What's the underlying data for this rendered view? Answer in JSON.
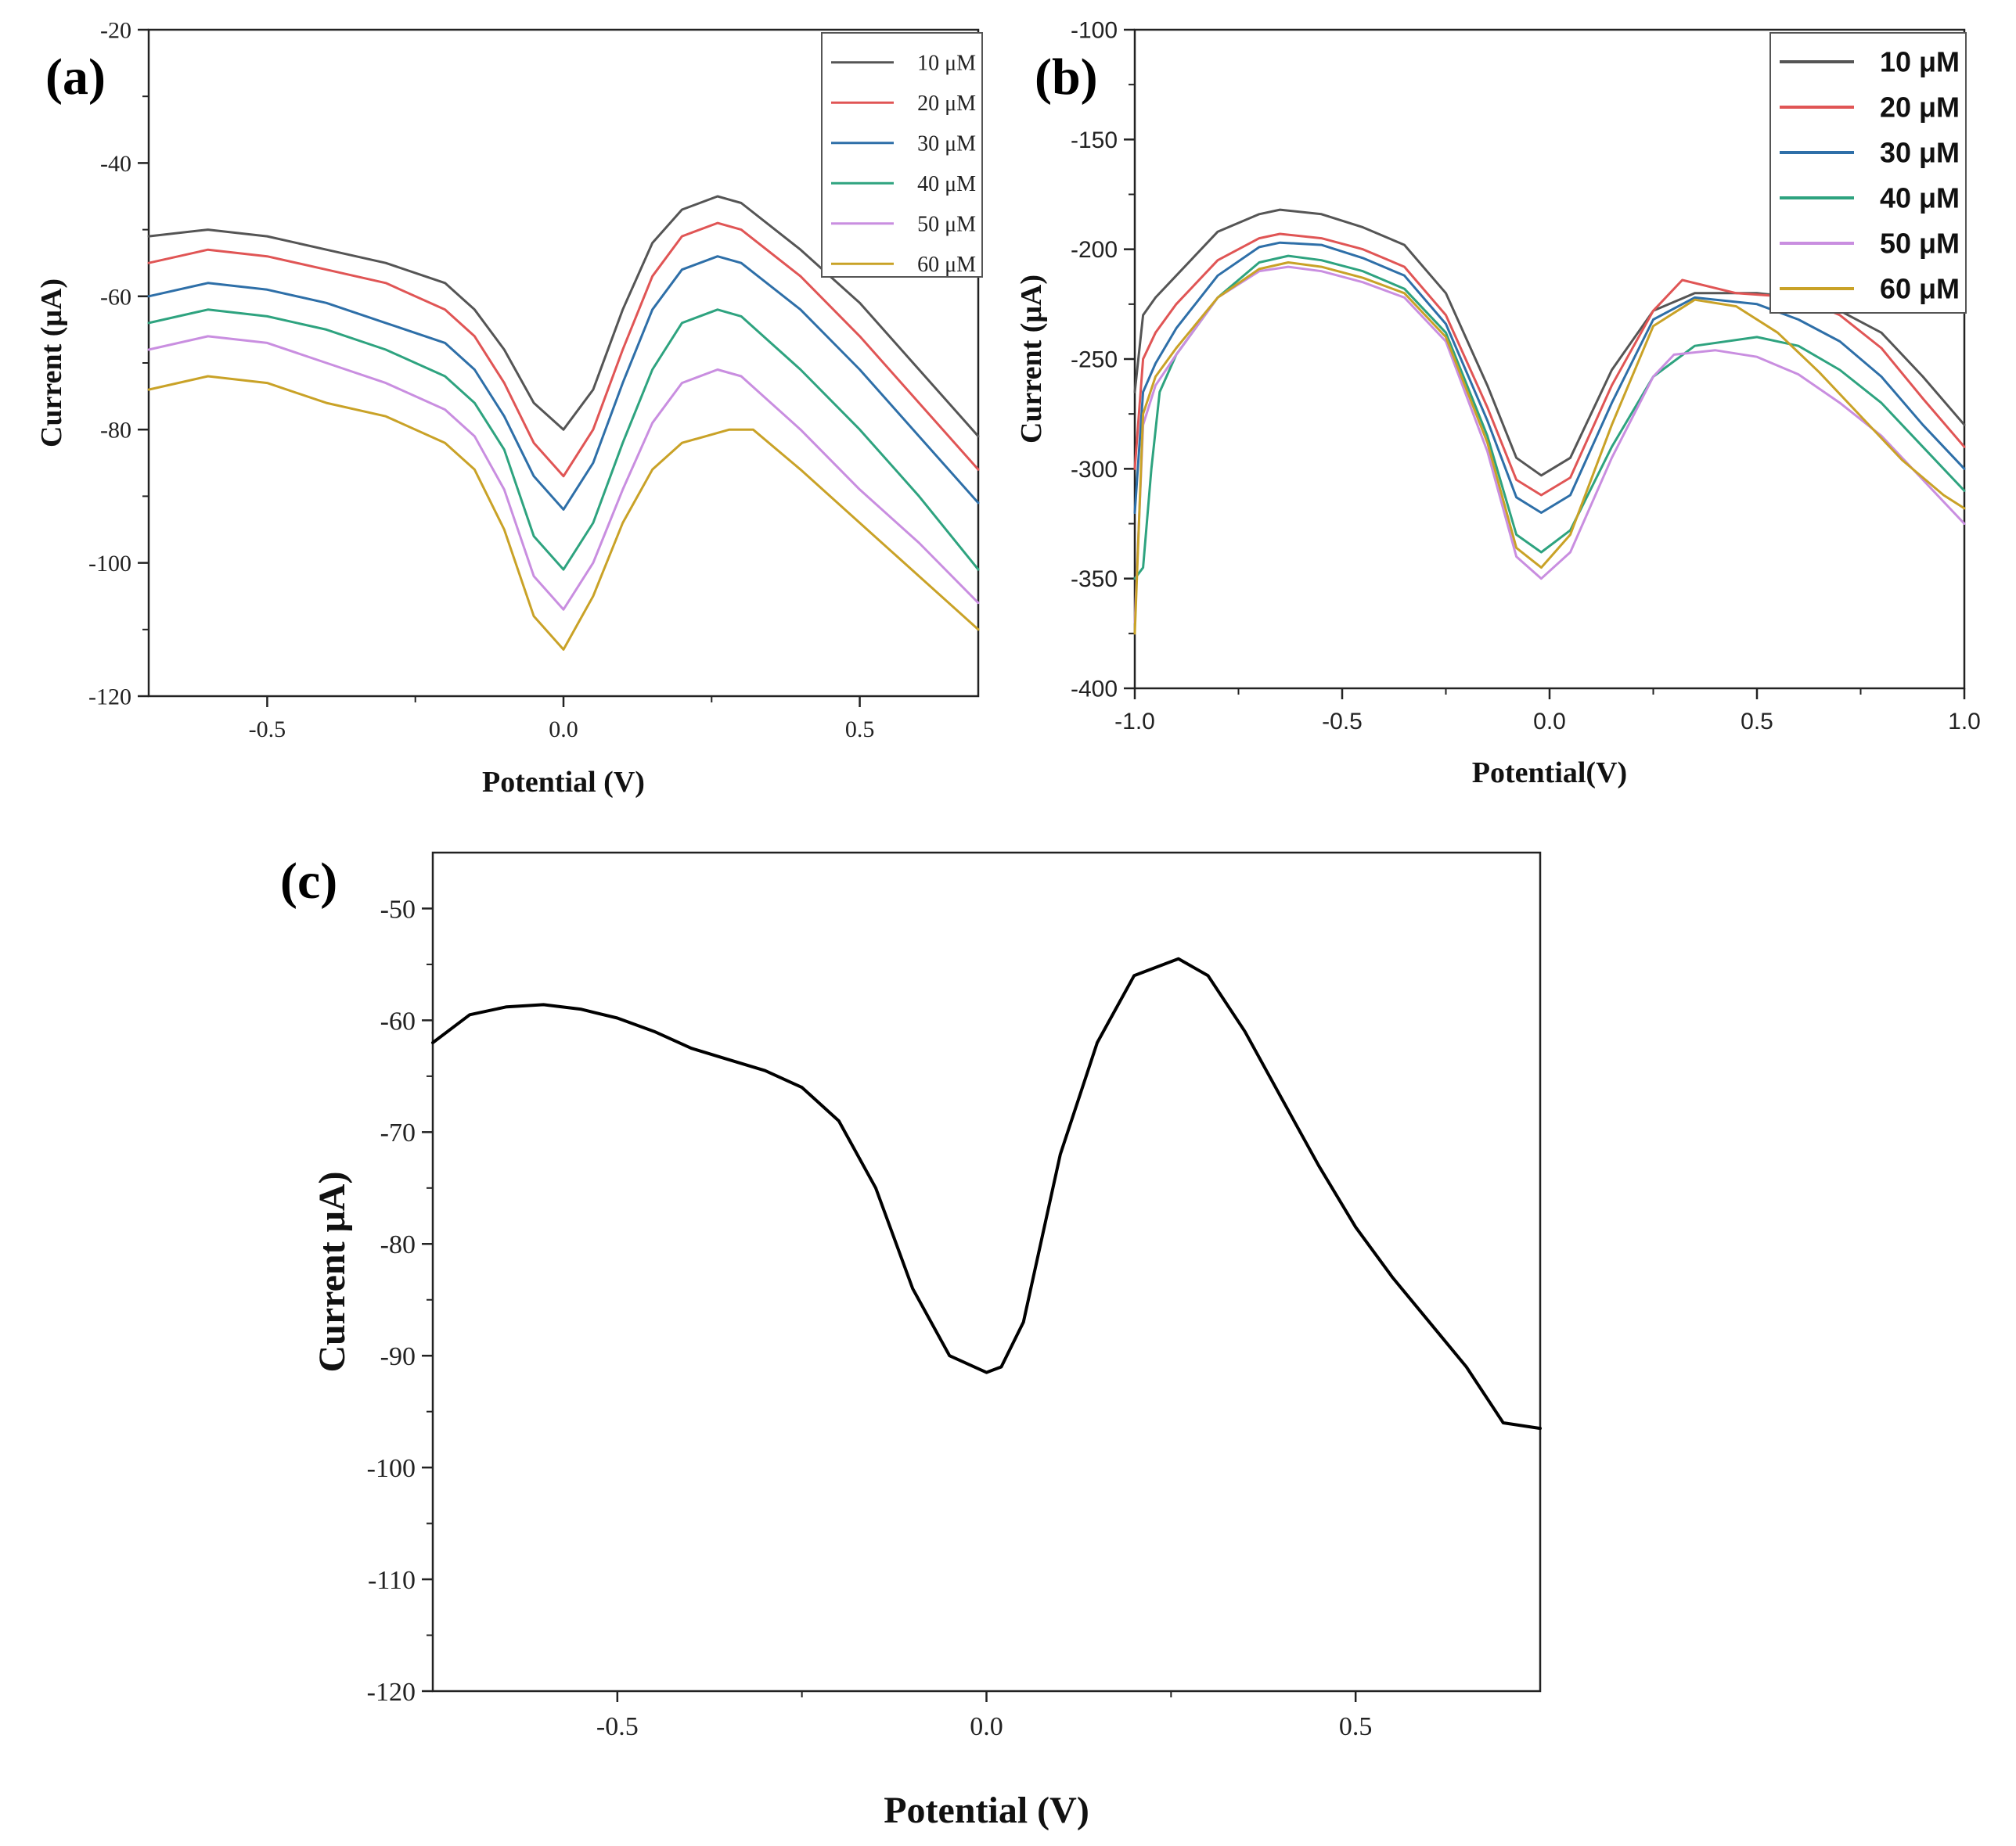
{
  "chart_data": [
    {
      "panel_label": "(a)",
      "type": "line",
      "xlabel": "Potential (V)",
      "ylabel": "Current (μA)",
      "xlim": [
        -0.7,
        0.7
      ],
      "ylim": [
        -120,
        -20
      ],
      "xticks": [
        -0.5,
        0.0,
        0.5
      ],
      "xtick_labels": [
        "-0.5",
        "0.0",
        "0.5"
      ],
      "yticks": [
        -20,
        -40,
        -60,
        -80,
        -100,
        -120
      ],
      "ytick_labels": [
        "-20",
        "-40",
        "-60",
        "-80",
        "-100",
        "-120"
      ],
      "legend_position": "top-right",
      "series": [
        {
          "name": "10 μM",
          "color": "#555555",
          "x": [
            -0.7,
            -0.6,
            -0.5,
            -0.4,
            -0.3,
            -0.2,
            -0.15,
            -0.1,
            -0.05,
            0.0,
            0.05,
            0.1,
            0.15,
            0.2,
            0.26,
            0.3,
            0.4,
            0.5,
            0.6,
            0.7
          ],
          "y": [
            -51,
            -50,
            -51,
            -53,
            -55,
            -58,
            -62,
            -68,
            -76,
            -80,
            -74,
            -62,
            -52,
            -47,
            -45,
            -46,
            -53,
            -61,
            -71,
            -81
          ]
        },
        {
          "name": "20 μM",
          "color": "#e05555",
          "x": [
            -0.7,
            -0.6,
            -0.5,
            -0.4,
            -0.3,
            -0.2,
            -0.15,
            -0.1,
            -0.05,
            0.0,
            0.05,
            0.1,
            0.15,
            0.2,
            0.26,
            0.3,
            0.4,
            0.5,
            0.6,
            0.7
          ],
          "y": [
            -55,
            -53,
            -54,
            -56,
            -58,
            -62,
            -66,
            -73,
            -82,
            -87,
            -80,
            -68,
            -57,
            -51,
            -49,
            -50,
            -57,
            -66,
            -76,
            -86
          ]
        },
        {
          "name": "30 μM",
          "color": "#2e6fa8",
          "x": [
            -0.7,
            -0.6,
            -0.5,
            -0.4,
            -0.3,
            -0.2,
            -0.15,
            -0.1,
            -0.05,
            0.0,
            0.05,
            0.1,
            0.15,
            0.2,
            0.26,
            0.3,
            0.4,
            0.5,
            0.6,
            0.7
          ],
          "y": [
            -60,
            -58,
            -59,
            -61,
            -64,
            -67,
            -71,
            -78,
            -87,
            -92,
            -85,
            -73,
            -62,
            -56,
            -54,
            -55,
            -62,
            -71,
            -81,
            -91
          ]
        },
        {
          "name": "40 μM",
          "color": "#2ea37f",
          "x": [
            -0.7,
            -0.6,
            -0.5,
            -0.4,
            -0.3,
            -0.2,
            -0.15,
            -0.1,
            -0.05,
            0.0,
            0.05,
            0.1,
            0.15,
            0.2,
            0.26,
            0.3,
            0.4,
            0.5,
            0.6,
            0.7
          ],
          "y": [
            -64,
            -62,
            -63,
            -65,
            -68,
            -72,
            -76,
            -83,
            -96,
            -101,
            -94,
            -82,
            -71,
            -64,
            -62,
            -63,
            -71,
            -80,
            -90,
            -101
          ]
        },
        {
          "name": "50 μM",
          "color": "#c98ee0",
          "x": [
            -0.7,
            -0.6,
            -0.5,
            -0.4,
            -0.3,
            -0.2,
            -0.15,
            -0.1,
            -0.05,
            0.0,
            0.05,
            0.1,
            0.15,
            0.2,
            0.26,
            0.3,
            0.4,
            0.5,
            0.6,
            0.7
          ],
          "y": [
            -68,
            -66,
            -67,
            -70,
            -73,
            -77,
            -81,
            -89,
            -102,
            -107,
            -100,
            -89,
            -79,
            -73,
            -71,
            -72,
            -80,
            -89,
            -97,
            -106
          ]
        },
        {
          "name": "60 μM",
          "color": "#c9a227",
          "x": [
            -0.7,
            -0.6,
            -0.5,
            -0.4,
            -0.3,
            -0.2,
            -0.15,
            -0.1,
            -0.05,
            0.0,
            0.05,
            0.1,
            0.15,
            0.2,
            0.28,
            0.32,
            0.4,
            0.5,
            0.6,
            0.7
          ],
          "y": [
            -74,
            -72,
            -73,
            -76,
            -78,
            -82,
            -86,
            -95,
            -108,
            -113,
            -105,
            -94,
            -86,
            -82,
            -80,
            -80,
            -86,
            -94,
            -102,
            -110
          ]
        }
      ]
    },
    {
      "panel_label": "(b)",
      "type": "line",
      "xlabel": "Potential(V)",
      "ylabel": "Current (μA)",
      "xlim": [
        -1.0,
        1.0
      ],
      "ylim": [
        -400,
        -100
      ],
      "xticks": [
        -1.0,
        -0.5,
        0.0,
        0.5,
        1.0
      ],
      "xtick_labels": [
        "-1.0",
        "-0.5",
        "0.0",
        "0.5",
        "1.0"
      ],
      "yticks": [
        -100,
        -150,
        -200,
        -250,
        -300,
        -350,
        -400
      ],
      "ytick_labels": [
        "-100",
        "-150",
        "-200",
        "-250",
        "-300",
        "-350",
        "-400"
      ],
      "legend_position": "top-right",
      "series": [
        {
          "name": "10 μM",
          "color": "#555555",
          "x": [
            -1.0,
            -0.98,
            -0.95,
            -0.9,
            -0.8,
            -0.7,
            -0.65,
            -0.55,
            -0.45,
            -0.35,
            -0.25,
            -0.15,
            -0.08,
            -0.02,
            0.05,
            0.15,
            0.25,
            0.35,
            0.5,
            0.6,
            0.7,
            0.8,
            0.9,
            1.0
          ],
          "y": [
            -265,
            -230,
            -222,
            -212,
            -192,
            -184,
            -182,
            -184,
            -190,
            -198,
            -220,
            -262,
            -295,
            -303,
            -295,
            -255,
            -228,
            -220,
            -220,
            -222,
            -228,
            -238,
            -258,
            -280
          ]
        },
        {
          "name": "20 μM",
          "color": "#e05555",
          "x": [
            -1.0,
            -0.98,
            -0.95,
            -0.9,
            -0.8,
            -0.7,
            -0.65,
            -0.55,
            -0.45,
            -0.35,
            -0.25,
            -0.15,
            -0.08,
            -0.02,
            0.05,
            0.15,
            0.25,
            0.32,
            0.45,
            0.6,
            0.7,
            0.8,
            0.9,
            1.0
          ],
          "y": [
            -300,
            -250,
            -238,
            -225,
            -205,
            -195,
            -193,
            -195,
            -200,
            -208,
            -230,
            -272,
            -305,
            -312,
            -304,
            -262,
            -228,
            -214,
            -220,
            -222,
            -230,
            -245,
            -268,
            -290
          ]
        },
        {
          "name": "30 μM",
          "color": "#2e6fa8",
          "x": [
            -1.0,
            -0.98,
            -0.95,
            -0.9,
            -0.8,
            -0.7,
            -0.65,
            -0.55,
            -0.45,
            -0.35,
            -0.25,
            -0.15,
            -0.08,
            -0.02,
            0.05,
            0.15,
            0.25,
            0.35,
            0.5,
            0.6,
            0.7,
            0.8,
            0.9,
            1.0
          ],
          "y": [
            -320,
            -265,
            -252,
            -236,
            -212,
            -199,
            -197,
            -198,
            -204,
            -212,
            -234,
            -278,
            -313,
            -320,
            -312,
            -270,
            -232,
            -222,
            -225,
            -232,
            -242,
            -258,
            -280,
            -300
          ]
        },
        {
          "name": "40 μM",
          "color": "#2ea37f",
          "x": [
            -1.0,
            -0.98,
            -0.96,
            -0.94,
            -0.9,
            -0.8,
            -0.7,
            -0.63,
            -0.55,
            -0.45,
            -0.35,
            -0.25,
            -0.15,
            -0.08,
            -0.02,
            0.05,
            0.15,
            0.25,
            0.35,
            0.5,
            0.6,
            0.7,
            0.8,
            0.9,
            1.0
          ],
          "y": [
            -350,
            -345,
            -300,
            -265,
            -248,
            -222,
            -206,
            -203,
            -205,
            -210,
            -218,
            -238,
            -285,
            -330,
            -338,
            -328,
            -290,
            -258,
            -244,
            -240,
            -244,
            -255,
            -270,
            -290,
            -310
          ]
        },
        {
          "name": "50 μM",
          "color": "#c98ee0",
          "x": [
            -1.0,
            -0.98,
            -0.95,
            -0.9,
            -0.8,
            -0.7,
            -0.63,
            -0.55,
            -0.45,
            -0.35,
            -0.25,
            -0.15,
            -0.08,
            -0.02,
            0.05,
            0.15,
            0.25,
            0.3,
            0.4,
            0.5,
            0.6,
            0.7,
            0.8,
            0.9,
            1.0
          ],
          "y": [
            -370,
            -280,
            -262,
            -248,
            -222,
            -210,
            -208,
            -210,
            -215,
            -222,
            -242,
            -292,
            -340,
            -350,
            -338,
            -295,
            -258,
            -248,
            -246,
            -249,
            -257,
            -270,
            -285,
            -305,
            -325
          ]
        },
        {
          "name": "60 μM",
          "color": "#c9a227",
          "x": [
            -1.0,
            -0.98,
            -0.95,
            -0.9,
            -0.8,
            -0.7,
            -0.63,
            -0.55,
            -0.45,
            -0.35,
            -0.25,
            -0.15,
            -0.08,
            -0.02,
            0.05,
            0.15,
            0.25,
            0.35,
            0.45,
            0.55,
            0.65,
            0.75,
            0.85,
            0.95,
            1.0
          ],
          "y": [
            -375,
            -275,
            -258,
            -245,
            -222,
            -209,
            -206,
            -208,
            -213,
            -220,
            -240,
            -288,
            -336,
            -345,
            -330,
            -280,
            -235,
            -223,
            -226,
            -238,
            -256,
            -276,
            -296,
            -312,
            -318
          ]
        }
      ]
    },
    {
      "panel_label": "(c)",
      "type": "line",
      "xlabel": "Potential (V)",
      "ylabel": "Current μA)",
      "xlim": [
        -0.75,
        0.75
      ],
      "ylim": [
        -120,
        -45
      ],
      "xticks": [
        -0.5,
        0.0,
        0.5
      ],
      "xtick_labels": [
        "-0.5",
        "0.0",
        "0.5"
      ],
      "yticks": [
        -50,
        -60,
        -70,
        -80,
        -90,
        -100,
        -110,
        -120
      ],
      "ytick_labels": [
        "-50",
        "-60",
        "-70",
        "-80",
        "-90",
        "-100",
        "-110",
        "-120"
      ],
      "series": [
        {
          "name": "",
          "color": "#000000",
          "x": [
            -0.75,
            -0.7,
            -0.65,
            -0.6,
            -0.55,
            -0.5,
            -0.45,
            -0.4,
            -0.35,
            -0.3,
            -0.25,
            -0.2,
            -0.15,
            -0.1,
            -0.05,
            0.0,
            0.02,
            0.05,
            0.1,
            0.15,
            0.2,
            0.26,
            0.3,
            0.35,
            0.4,
            0.45,
            0.5,
            0.55,
            0.6,
            0.65,
            0.7,
            0.75
          ],
          "y": [
            -62,
            -59.5,
            -58.8,
            -58.6,
            -59,
            -59.8,
            -61,
            -62.5,
            -63.5,
            -64.5,
            -66,
            -69,
            -75,
            -84,
            -90,
            -91.5,
            -91,
            -87,
            -72,
            -62,
            -56,
            -54.5,
            -56,
            -61,
            -67,
            -73,
            -78.5,
            -83,
            -87,
            -91,
            -96,
            -96.5
          ]
        }
      ]
    }
  ]
}
